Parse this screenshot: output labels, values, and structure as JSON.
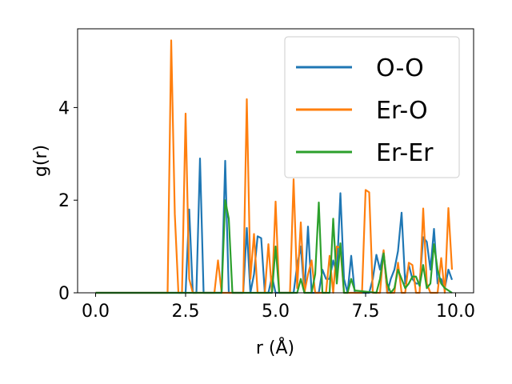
{
  "chart_data": {
    "type": "line",
    "xlabel": "r (Å)",
    "ylabel": "g(r)",
    "xlim": [
      -0.5,
      10.5
    ],
    "ylim": [
      0,
      5.7
    ],
    "xticks": [
      "0.0",
      "2.5",
      "5.0",
      "7.5",
      "10.0"
    ],
    "xtick_values": [
      0,
      2.5,
      5,
      7.5,
      10
    ],
    "yticks": [
      "0",
      "2",
      "4"
    ],
    "ytick_values": [
      0,
      2,
      4
    ],
    "legend_position": "upper right",
    "grid": false,
    "series": [
      {
        "name": "O-O",
        "color": "#1f77b4",
        "points": [
          [
            0,
            0
          ],
          [
            2.4,
            0
          ],
          [
            2.5,
            0
          ],
          [
            2.6,
            1.8
          ],
          [
            2.7,
            0
          ],
          [
            2.8,
            0
          ],
          [
            2.9,
            2.9
          ],
          [
            3.0,
            0
          ],
          [
            3.4,
            0
          ],
          [
            3.5,
            0
          ],
          [
            3.6,
            2.85
          ],
          [
            3.7,
            0
          ],
          [
            4.1,
            0
          ],
          [
            4.2,
            1.4
          ],
          [
            4.3,
            0
          ],
          [
            4.4,
            0.4
          ],
          [
            4.5,
            1.22
          ],
          [
            4.6,
            1.18
          ],
          [
            4.7,
            0
          ],
          [
            4.8,
            0
          ],
          [
            4.9,
            0.35
          ],
          [
            5.0,
            0
          ],
          [
            5.5,
            0
          ],
          [
            5.6,
            0.6
          ],
          [
            5.7,
            1.0
          ],
          [
            5.8,
            0
          ],
          [
            5.9,
            1.43
          ],
          [
            6.0,
            0
          ],
          [
            6.2,
            0
          ],
          [
            6.3,
            0.5
          ],
          [
            6.4,
            0.3
          ],
          [
            6.5,
            0.3
          ],
          [
            6.6,
            0.7
          ],
          [
            6.7,
            0.4
          ],
          [
            6.8,
            2.15
          ],
          [
            6.9,
            0.3
          ],
          [
            7.0,
            0
          ],
          [
            7.1,
            0.8
          ],
          [
            7.2,
            0
          ],
          [
            7.6,
            0
          ],
          [
            7.7,
            0.3
          ],
          [
            7.8,
            0.82
          ],
          [
            7.9,
            0.5
          ],
          [
            8.0,
            0.9
          ],
          [
            8.1,
            0
          ],
          [
            8.2,
            0.3
          ],
          [
            8.3,
            0.5
          ],
          [
            8.4,
            0.9
          ],
          [
            8.5,
            1.73
          ],
          [
            8.6,
            0.2
          ],
          [
            8.7,
            0.6
          ],
          [
            8.8,
            0.3
          ],
          [
            8.9,
            0.2
          ],
          [
            9.0,
            0.2
          ],
          [
            9.1,
            1.2
          ],
          [
            9.2,
            1.1
          ],
          [
            9.3,
            0.5
          ],
          [
            9.4,
            1.38
          ],
          [
            9.5,
            0.2
          ],
          [
            9.6,
            0.3
          ],
          [
            9.7,
            0.1
          ],
          [
            9.8,
            0.5
          ],
          [
            9.9,
            0.28
          ]
        ]
      },
      {
        "name": "Er-O",
        "color": "#ff7f0e",
        "points": [
          [
            0,
            0
          ],
          [
            2.0,
            0
          ],
          [
            2.1,
            5.45
          ],
          [
            2.2,
            1.7
          ],
          [
            2.3,
            0
          ],
          [
            2.4,
            0
          ],
          [
            2.5,
            3.87
          ],
          [
            2.6,
            0.3
          ],
          [
            2.7,
            0
          ],
          [
            3.3,
            0
          ],
          [
            3.4,
            0.7
          ],
          [
            3.5,
            0
          ],
          [
            4.1,
            0
          ],
          [
            4.2,
            4.18
          ],
          [
            4.3,
            0.3
          ],
          [
            4.4,
            1.27
          ],
          [
            4.5,
            0
          ],
          [
            4.7,
            0
          ],
          [
            4.8,
            1.05
          ],
          [
            4.9,
            0
          ],
          [
            5.0,
            1.97
          ],
          [
            5.1,
            0
          ],
          [
            5.4,
            0
          ],
          [
            5.5,
            2.45
          ],
          [
            5.6,
            0.1
          ],
          [
            5.7,
            1.52
          ],
          [
            5.8,
            0
          ],
          [
            5.9,
            0.4
          ],
          [
            6.0,
            0.7
          ],
          [
            6.1,
            0
          ],
          [
            6.4,
            0
          ],
          [
            6.5,
            0.8
          ],
          [
            6.6,
            0
          ],
          [
            6.7,
            1.0
          ],
          [
            6.8,
            0.97
          ],
          [
            6.9,
            0
          ],
          [
            7.4,
            0
          ],
          [
            7.5,
            2.22
          ],
          [
            7.6,
            2.17
          ],
          [
            7.7,
            0
          ],
          [
            7.9,
            0
          ],
          [
            8.0,
            0.92
          ],
          [
            8.1,
            0
          ],
          [
            8.3,
            0
          ],
          [
            8.4,
            0.65
          ],
          [
            8.5,
            0
          ],
          [
            8.6,
            0
          ],
          [
            8.7,
            0.65
          ],
          [
            8.8,
            0.6
          ],
          [
            8.9,
            0
          ],
          [
            9.0,
            0
          ],
          [
            9.1,
            1.82
          ],
          [
            9.2,
            0.2
          ],
          [
            9.3,
            0
          ],
          [
            9.5,
            0
          ],
          [
            9.6,
            0.75
          ],
          [
            9.7,
            0
          ],
          [
            9.8,
            1.83
          ],
          [
            9.9,
            0.5
          ]
        ]
      },
      {
        "name": "Er-Er",
        "color": "#2ca02c",
        "points": [
          [
            0,
            0
          ],
          [
            3.4,
            0
          ],
          [
            3.5,
            0
          ],
          [
            3.6,
            2.0
          ],
          [
            3.7,
            1.6
          ],
          [
            3.8,
            0
          ],
          [
            4.8,
            0
          ],
          [
            4.9,
            0
          ],
          [
            5.0,
            1.0
          ],
          [
            5.1,
            0
          ],
          [
            5.5,
            0
          ],
          [
            5.6,
            0
          ],
          [
            5.7,
            0.3
          ],
          [
            5.8,
            0
          ],
          [
            6.0,
            0
          ],
          [
            6.1,
            0.4
          ],
          [
            6.2,
            1.95
          ],
          [
            6.3,
            0
          ],
          [
            6.5,
            0
          ],
          [
            6.6,
            1.6
          ],
          [
            6.7,
            0.2
          ],
          [
            6.8,
            1.07
          ],
          [
            6.9,
            0
          ],
          [
            7.0,
            0
          ],
          [
            7.1,
            0.3
          ],
          [
            7.2,
            0.05
          ],
          [
            7.8,
            0
          ],
          [
            7.9,
            0.3
          ],
          [
            8.0,
            0.85
          ],
          [
            8.1,
            0.2
          ],
          [
            8.2,
            0
          ],
          [
            8.3,
            0.1
          ],
          [
            8.4,
            0.5
          ],
          [
            8.5,
            0.3
          ],
          [
            8.6,
            0.1
          ],
          [
            8.7,
            0.2
          ],
          [
            8.8,
            0.35
          ],
          [
            8.9,
            0.35
          ],
          [
            9.0,
            0.15
          ],
          [
            9.1,
            0.6
          ],
          [
            9.2,
            0.1
          ],
          [
            9.3,
            0.2
          ],
          [
            9.4,
            1.05
          ],
          [
            9.5,
            0.5
          ],
          [
            9.6,
            0.2
          ],
          [
            9.7,
            0.1
          ],
          [
            9.8,
            0.05
          ],
          [
            9.9,
            0
          ]
        ]
      }
    ]
  }
}
